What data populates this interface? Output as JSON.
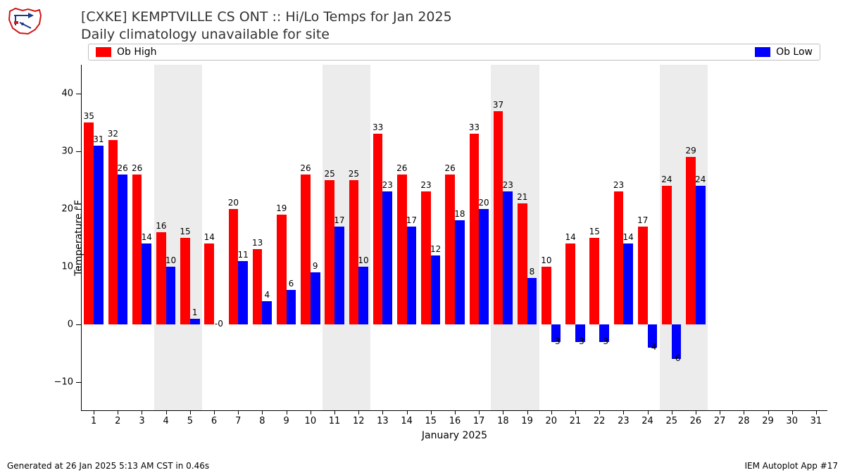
{
  "title_line1": "[CXKE] KEMPTVILLE CS  ONT :: Hi/Lo Temps for Jan 2025",
  "title_line2": "Daily climatology unavailable for site",
  "footer_left": "Generated at 26 Jan 2025 5:13 AM CST in 0.46s",
  "footer_right": "IEM Autoplot App #17",
  "chart": {
    "type": "bar",
    "xlabel": "January 2025",
    "ylabel": "Temperature °F",
    "ylim": [
      -15,
      45
    ],
    "ytick_step": 10,
    "xdays": 31,
    "background_color": "#ffffff",
    "weekend_band_color": "#ececec",
    "axis_color": "#000000",
    "title_fontsize": 19,
    "label_fontsize": 14,
    "tick_fontsize": 13,
    "barlabel_fontsize": 12,
    "bar_width": 0.4,
    "weekend_days": [
      [
        4,
        5
      ],
      [
        11,
        12
      ],
      [
        18,
        19
      ],
      [
        25,
        26
      ]
    ],
    "series": [
      {
        "name": "Ob High",
        "color": "#ff0000",
        "values": [
          35,
          32,
          26,
          16,
          15,
          14,
          20,
          13,
          19,
          26,
          25,
          25,
          33,
          26,
          23,
          26,
          33,
          37,
          21,
          10,
          14,
          15,
          23,
          17,
          24,
          29,
          null,
          null,
          null,
          null,
          null
        ]
      },
      {
        "name": "Ob Low",
        "color": "#0000ff",
        "values": [
          31,
          26,
          14,
          10,
          1,
          -0.001,
          11,
          4,
          6,
          9,
          17,
          10,
          23,
          17,
          12,
          18,
          20,
          23,
          8,
          -3,
          -3,
          -3,
          14,
          -4,
          -6,
          24,
          null,
          null,
          null,
          null,
          null
        ]
      }
    ],
    "low_labels_override": {
      "6": "-0",
      "20": "-3",
      "21": "-3",
      "22": "-3"
    }
  },
  "legend": {
    "items": [
      {
        "label": "Ob High",
        "color": "#ff0000"
      },
      {
        "label": "Ob Low",
        "color": "#0000ff"
      }
    ]
  }
}
